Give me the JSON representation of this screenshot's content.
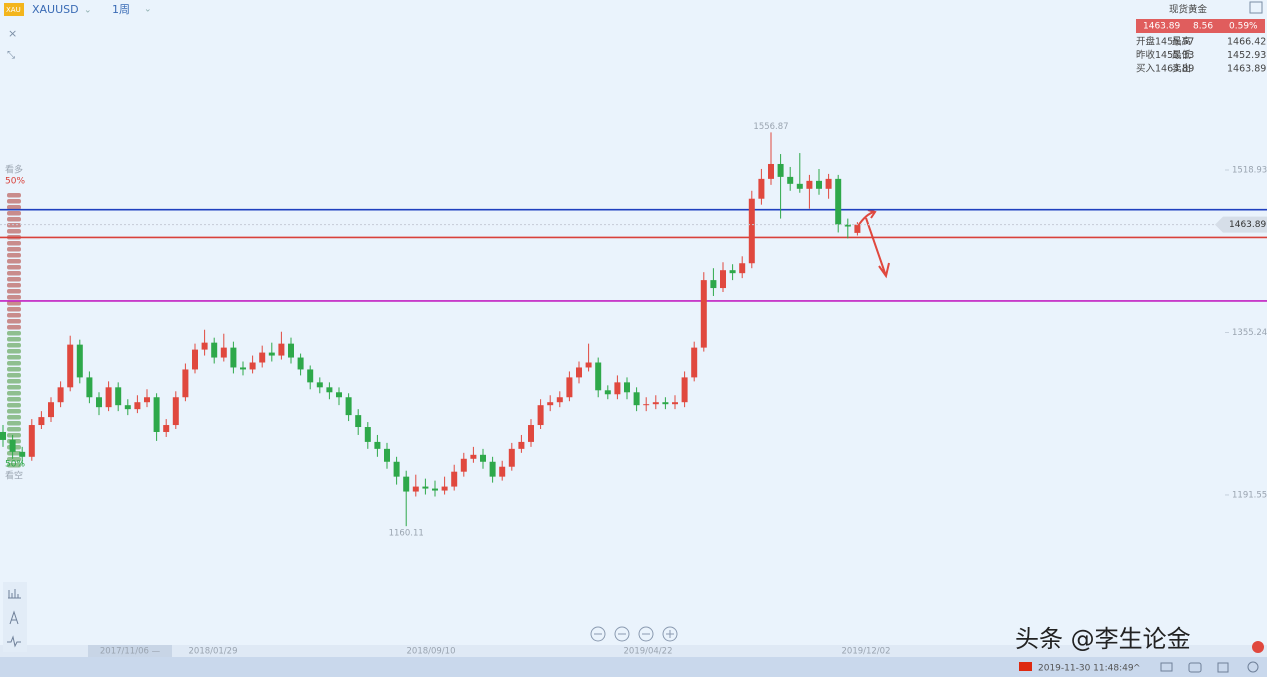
{
  "toolbar": {
    "symbol": "XAUUSD",
    "period": "1周"
  },
  "quote": {
    "name": "现货黄金",
    "price": "1463.89",
    "change": "8.56",
    "change_pct": "0.59%",
    "rows": [
      [
        "开盘",
        "1455.57",
        "最高",
        "1466.42"
      ],
      [
        "昨收",
        "1455.33",
        "最低",
        "1452.93"
      ],
      [
        "买入",
        "1463.89",
        "卖出",
        "1463.89"
      ]
    ]
  },
  "sentiment": {
    "bull_label": "看多",
    "bull_pct": "50%",
    "bear_pct": "50%",
    "bear_label": "看空"
  },
  "chart_data": {
    "type": "candlestick",
    "up_color": "#e0483e",
    "down_color": "#2ea84a",
    "ylim": [
      1040.4,
      1690.2
    ],
    "yticks": [
      1191.55,
      1355.24,
      1518.93
    ],
    "x_labels": [
      "2017/11/06 —",
      "2018/01/29",
      "2018/09/10",
      "2019/04/22",
      "2019/12/02"
    ],
    "hlines": [
      {
        "value": 1479,
        "color": "#1f3fbf"
      },
      {
        "value": 1451,
        "color": "#d9413a"
      },
      {
        "value": 1387,
        "color": "#c21fc2"
      }
    ],
    "candles": [
      [
        1255,
        1262,
        1240,
        1247
      ],
      [
        1247,
        1252,
        1228,
        1235
      ],
      [
        1235,
        1240,
        1222,
        1230
      ],
      [
        1230,
        1268,
        1226,
        1262
      ],
      [
        1262,
        1276,
        1258,
        1270
      ],
      [
        1270,
        1290,
        1265,
        1285
      ],
      [
        1285,
        1306,
        1280,
        1300
      ],
      [
        1300,
        1352,
        1296,
        1343
      ],
      [
        1343,
        1348,
        1304,
        1310
      ],
      [
        1310,
        1316,
        1284,
        1290
      ],
      [
        1290,
        1295,
        1272,
        1280
      ],
      [
        1280,
        1306,
        1276,
        1300
      ],
      [
        1300,
        1305,
        1276,
        1282
      ],
      [
        1282,
        1288,
        1272,
        1278
      ],
      [
        1278,
        1292,
        1274,
        1285
      ],
      [
        1285,
        1298,
        1280,
        1290
      ],
      [
        1290,
        1294,
        1246,
        1255
      ],
      [
        1255,
        1268,
        1250,
        1262
      ],
      [
        1262,
        1296,
        1258,
        1290
      ],
      [
        1290,
        1324,
        1286,
        1318
      ],
      [
        1318,
        1344,
        1314,
        1338
      ],
      [
        1338,
        1358,
        1332,
        1345
      ],
      [
        1345,
        1350,
        1324,
        1330
      ],
      [
        1330,
        1354,
        1326,
        1340
      ],
      [
        1340,
        1346,
        1314,
        1320
      ],
      [
        1320,
        1326,
        1312,
        1318
      ],
      [
        1318,
        1332,
        1314,
        1325
      ],
      [
        1325,
        1342,
        1320,
        1335
      ],
      [
        1335,
        1345,
        1326,
        1332
      ],
      [
        1332,
        1356,
        1328,
        1344
      ],
      [
        1344,
        1350,
        1324,
        1330
      ],
      [
        1330,
        1334,
        1312,
        1318
      ],
      [
        1318,
        1322,
        1298,
        1305
      ],
      [
        1305,
        1310,
        1294,
        1300
      ],
      [
        1300,
        1305,
        1288,
        1295
      ],
      [
        1295,
        1300,
        1282,
        1290
      ],
      [
        1290,
        1294,
        1266,
        1272
      ],
      [
        1272,
        1278,
        1252,
        1260
      ],
      [
        1260,
        1265,
        1238,
        1245
      ],
      [
        1245,
        1252,
        1230,
        1238
      ],
      [
        1238,
        1244,
        1218,
        1225
      ],
      [
        1225,
        1230,
        1202,
        1210
      ],
      [
        1210,
        1216,
        1160.11,
        1195
      ],
      [
        1195,
        1212,
        1190,
        1200
      ],
      [
        1200,
        1208,
        1192,
        1198
      ],
      [
        1198,
        1206,
        1190,
        1196
      ],
      [
        1196,
        1210,
        1192,
        1200
      ],
      [
        1200,
        1222,
        1196,
        1215
      ],
      [
        1215,
        1234,
        1210,
        1228
      ],
      [
        1228,
        1240,
        1224,
        1232
      ],
      [
        1232,
        1238,
        1218,
        1225
      ],
      [
        1225,
        1230,
        1204,
        1210
      ],
      [
        1210,
        1226,
        1206,
        1220
      ],
      [
        1220,
        1244,
        1216,
        1238
      ],
      [
        1238,
        1252,
        1234,
        1245
      ],
      [
        1245,
        1268,
        1240,
        1262
      ],
      [
        1262,
        1288,
        1258,
        1282
      ],
      [
        1282,
        1292,
        1276,
        1285
      ],
      [
        1285,
        1296,
        1280,
        1290
      ],
      [
        1290,
        1316,
        1286,
        1310
      ],
      [
        1310,
        1326,
        1304,
        1320
      ],
      [
        1320,
        1344,
        1316,
        1325
      ],
      [
        1325,
        1330,
        1290,
        1297
      ],
      [
        1297,
        1302,
        1288,
        1293
      ],
      [
        1293,
        1312,
        1288,
        1305
      ],
      [
        1305,
        1310,
        1288,
        1295
      ],
      [
        1295,
        1300,
        1276,
        1282
      ],
      [
        1282,
        1290,
        1276,
        1283
      ],
      [
        1283,
        1292,
        1278,
        1285
      ],
      [
        1285,
        1290,
        1278,
        1283
      ],
      [
        1283,
        1292,
        1278,
        1285
      ],
      [
        1285,
        1316,
        1280,
        1310
      ],
      [
        1310,
        1346,
        1306,
        1340
      ],
      [
        1340,
        1416,
        1336,
        1408
      ],
      [
        1408,
        1420,
        1392,
        1400
      ],
      [
        1400,
        1426,
        1396,
        1418
      ],
      [
        1418,
        1424,
        1408,
        1415
      ],
      [
        1415,
        1432,
        1410,
        1425
      ],
      [
        1425,
        1498,
        1420,
        1490
      ],
      [
        1490,
        1520,
        1484,
        1510
      ],
      [
        1510,
        1556.87,
        1504,
        1525
      ],
      [
        1525,
        1535,
        1470,
        1512
      ],
      [
        1512,
        1522,
        1498,
        1505
      ],
      [
        1505,
        1536,
        1496,
        1500
      ],
      [
        1500,
        1514,
        1480,
        1508
      ],
      [
        1508,
        1520,
        1494,
        1500
      ],
      [
        1500,
        1515,
        1490,
        1510
      ],
      [
        1510,
        1514,
        1456,
        1464
      ],
      [
        1464,
        1470,
        1450,
        1462
      ],
      [
        1455.57,
        1466.42,
        1452.93,
        1463.89
      ]
    ]
  },
  "status": {
    "time": "2019-11-30 11:48:49"
  },
  "watermark": "头条 @李生论金"
}
